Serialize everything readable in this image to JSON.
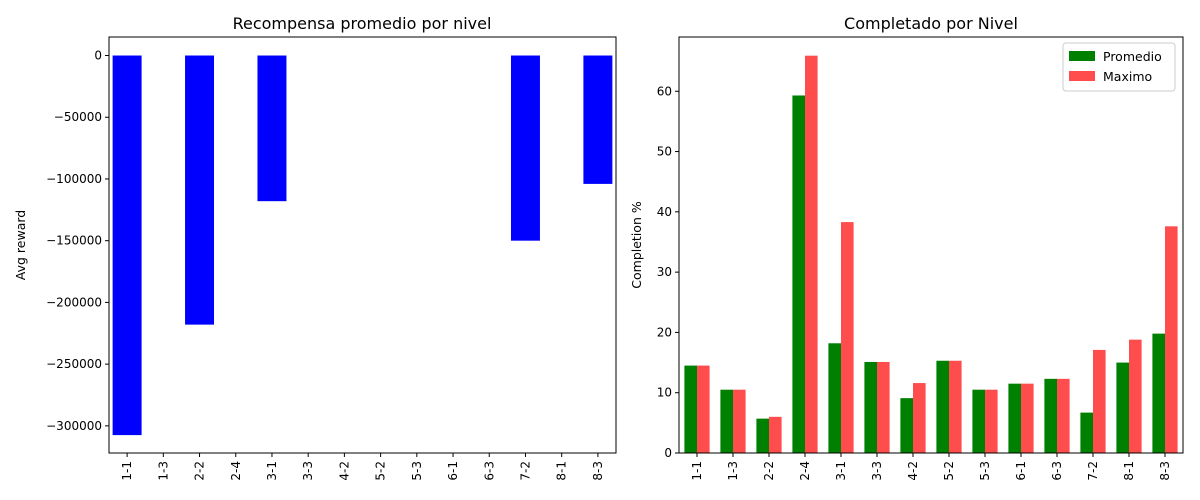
{
  "chart_data": [
    {
      "type": "bar",
      "title": "Recompensa promedio por nivel",
      "xlabel": "",
      "ylabel": "Avg reward",
      "categories": [
        "1-1",
        "1-3",
        "2-2",
        "2-4",
        "3-1",
        "3-3",
        "4-2",
        "5-2",
        "5-3",
        "6-1",
        "6-3",
        "7-2",
        "8-1",
        "8-3"
      ],
      "series": [
        {
          "color": "#0000ff",
          "values": [
            -307500,
            0,
            -218000,
            0,
            -118000,
            0,
            0,
            0,
            0,
            0,
            0,
            -150000,
            0,
            -104000
          ]
        }
      ],
      "ylim": [
        -322000,
        15000
      ],
      "yticks": [
        0,
        -50000,
        -100000,
        -150000,
        -200000,
        -250000,
        -300000
      ],
      "ytick_labels": [
        "0",
        "−50000",
        "−100000",
        "−150000",
        "−200000",
        "−250000",
        "−300000"
      ],
      "legend": null,
      "grid": false
    },
    {
      "type": "bar",
      "title": "Completado por Nivel",
      "xlabel": "",
      "ylabel": "Completion %",
      "categories": [
        "1-1",
        "1-3",
        "2-2",
        "2-4",
        "3-1",
        "3-3",
        "4-2",
        "5-2",
        "5-3",
        "6-1",
        "6-3",
        "7-2",
        "8-1",
        "8-3"
      ],
      "series": [
        {
          "name": "Promedio",
          "color": "#008000",
          "values": [
            14.5,
            10.5,
            5.7,
            59.3,
            18.2,
            15.1,
            9.1,
            15.3,
            10.5,
            11.5,
            12.3,
            6.7,
            15.0,
            19.8
          ]
        },
        {
          "name": "Maximo",
          "color": "#ff4d4d",
          "values": [
            14.5,
            10.5,
            6.0,
            65.9,
            38.3,
            15.1,
            11.6,
            15.3,
            10.5,
            11.5,
            12.3,
            17.1,
            18.8,
            37.6
          ]
        }
      ],
      "ylim": [
        0,
        69
      ],
      "yticks": [
        0,
        10,
        20,
        30,
        40,
        50,
        60
      ],
      "ytick_labels": [
        "0",
        "10",
        "20",
        "30",
        "40",
        "50",
        "60"
      ],
      "legend": "top-right",
      "grid": false
    }
  ]
}
